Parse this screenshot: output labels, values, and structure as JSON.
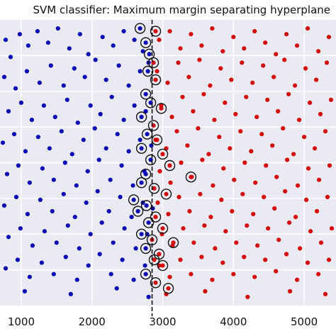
{
  "chart_data": {
    "type": "scatter",
    "title": "SVM classifier: Maximum margin separating hyperplane",
    "xlabel": "",
    "ylabel": "",
    "xlim": [
      700,
      5450
    ],
    "ylim": [
      0,
      1
    ],
    "x_ticks": [
      1000,
      2000,
      3000,
      4000,
      5000
    ],
    "x_tick_labels": [
      "1000",
      "2000",
      "3000",
      "4000",
      "5000"
    ],
    "grid": true,
    "legend": "none",
    "decision_boundary_x": 2850,
    "series": [
      {
        "color": "#0a0ab4",
        "x_range": [
          700,
          2880
        ],
        "points": [
          [
            780,
            0.93
          ],
          [
            850,
            0.87
          ],
          [
            980,
            0.95
          ],
          [
            1100,
            0.91
          ],
          [
            1230,
            0.96
          ],
          [
            1380,
            0.92
          ],
          [
            1520,
            0.97
          ],
          [
            1680,
            0.9
          ],
          [
            1830,
            0.95
          ],
          [
            1950,
            0.88
          ],
          [
            2150,
            0.94
          ],
          [
            2300,
            0.91
          ],
          [
            2450,
            0.96
          ],
          [
            2600,
            0.93
          ],
          [
            2720,
            0.89
          ],
          [
            760,
            0.8
          ],
          [
            920,
            0.76
          ],
          [
            1080,
            0.82
          ],
          [
            1260,
            0.78
          ],
          [
            1420,
            0.84
          ],
          [
            1600,
            0.77
          ],
          [
            1750,
            0.83
          ],
          [
            1900,
            0.8
          ],
          [
            2050,
            0.86
          ],
          [
            2200,
            0.79
          ],
          [
            2380,
            0.84
          ],
          [
            2520,
            0.77
          ],
          [
            2680,
            0.82
          ],
          [
            2800,
            0.85
          ],
          [
            820,
            0.68
          ],
          [
            1000,
            0.71
          ],
          [
            1150,
            0.65
          ],
          [
            1320,
            0.7
          ],
          [
            1480,
            0.66
          ],
          [
            1650,
            0.72
          ],
          [
            1800,
            0.64
          ],
          [
            1980,
            0.7
          ],
          [
            2120,
            0.67
          ],
          [
            2280,
            0.73
          ],
          [
            2450,
            0.65
          ],
          [
            2600,
            0.7
          ],
          [
            2760,
            0.68
          ],
          [
            740,
            0.57
          ],
          [
            900,
            0.6
          ],
          [
            1060,
            0.54
          ],
          [
            1240,
            0.59
          ],
          [
            1400,
            0.55
          ],
          [
            1570,
            0.61
          ],
          [
            1720,
            0.53
          ],
          [
            1880,
            0.58
          ],
          [
            2040,
            0.62
          ],
          [
            2200,
            0.55
          ],
          [
            2360,
            0.6
          ],
          [
            2520,
            0.54
          ],
          [
            2680,
            0.58
          ],
          [
            2840,
            0.56
          ],
          [
            800,
            0.46
          ],
          [
            960,
            0.49
          ],
          [
            1120,
            0.43
          ],
          [
            1300,
            0.48
          ],
          [
            1460,
            0.44
          ],
          [
            1620,
            0.5
          ],
          [
            1780,
            0.42
          ],
          [
            1940,
            0.47
          ],
          [
            2100,
            0.51
          ],
          [
            2260,
            0.44
          ],
          [
            2420,
            0.49
          ],
          [
            2580,
            0.42
          ],
          [
            2740,
            0.47
          ],
          [
            760,
            0.35
          ],
          [
            930,
            0.38
          ],
          [
            1090,
            0.32
          ],
          [
            1270,
            0.37
          ],
          [
            1440,
            0.33
          ],
          [
            1600,
            0.39
          ],
          [
            1760,
            0.31
          ],
          [
            1920,
            0.36
          ],
          [
            2080,
            0.4
          ],
          [
            2240,
            0.33
          ],
          [
            2400,
            0.38
          ],
          [
            2560,
            0.31
          ],
          [
            2720,
            0.36
          ],
          [
            2860,
            0.34
          ],
          [
            820,
            0.24
          ],
          [
            990,
            0.27
          ],
          [
            1160,
            0.21
          ],
          [
            1330,
            0.26
          ],
          [
            1500,
            0.22
          ],
          [
            1660,
            0.28
          ],
          [
            1820,
            0.2
          ],
          [
            1980,
            0.25
          ],
          [
            2140,
            0.29
          ],
          [
            2300,
            0.22
          ],
          [
            2460,
            0.27
          ],
          [
            2620,
            0.2
          ],
          [
            2780,
            0.25
          ],
          [
            780,
            0.13
          ],
          [
            950,
            0.16
          ],
          [
            1120,
            0.1
          ],
          [
            1290,
            0.15
          ],
          [
            1460,
            0.11
          ],
          [
            1630,
            0.17
          ],
          [
            1790,
            0.09
          ],
          [
            1950,
            0.14
          ],
          [
            2110,
            0.18
          ],
          [
            2270,
            0.11
          ],
          [
            2430,
            0.16
          ],
          [
            2590,
            0.09
          ],
          [
            2750,
            0.14
          ],
          [
            1050,
            0.05
          ],
          [
            1700,
            0.04
          ],
          [
            2350,
            0.06
          ],
          [
            2800,
            0.03
          ]
        ]
      },
      {
        "color": "#d40a0a",
        "x_range": [
          2860,
          5450
        ],
        "points": [
          [
            2950,
            0.93
          ],
          [
            3100,
            0.96
          ],
          [
            3250,
            0.9
          ],
          [
            3400,
            0.95
          ],
          [
            3550,
            0.91
          ],
          [
            3700,
            0.97
          ],
          [
            3850,
            0.89
          ],
          [
            4000,
            0.94
          ],
          [
            4150,
            0.9
          ],
          [
            4300,
            0.96
          ],
          [
            4450,
            0.92
          ],
          [
            4600,
            0.88
          ],
          [
            4750,
            0.95
          ],
          [
            4900,
            0.91
          ],
          [
            5050,
            0.97
          ],
          [
            5200,
            0.89
          ],
          [
            5350,
            0.94
          ],
          [
            2920,
            0.82
          ],
          [
            3070,
            0.78
          ],
          [
            3220,
            0.85
          ],
          [
            3370,
            0.8
          ],
          [
            3520,
            0.86
          ],
          [
            3670,
            0.77
          ],
          [
            3820,
            0.83
          ],
          [
            3970,
            0.79
          ],
          [
            4120,
            0.85
          ],
          [
            4270,
            0.78
          ],
          [
            4420,
            0.84
          ],
          [
            4570,
            0.8
          ],
          [
            4720,
            0.86
          ],
          [
            4870,
            0.77
          ],
          [
            5020,
            0.83
          ],
          [
            5170,
            0.79
          ],
          [
            5320,
            0.85
          ],
          [
            2980,
            0.7
          ],
          [
            3130,
            0.66
          ],
          [
            3280,
            0.73
          ],
          [
            3430,
            0.68
          ],
          [
            3580,
            0.74
          ],
          [
            3730,
            0.65
          ],
          [
            3880,
            0.71
          ],
          [
            4030,
            0.67
          ],
          [
            4180,
            0.73
          ],
          [
            4330,
            0.66
          ],
          [
            4480,
            0.72
          ],
          [
            4630,
            0.68
          ],
          [
            4780,
            0.74
          ],
          [
            4930,
            0.65
          ],
          [
            5080,
            0.71
          ],
          [
            5230,
            0.67
          ],
          [
            5380,
            0.72
          ],
          [
            2900,
            0.58
          ],
          [
            3050,
            0.55
          ],
          [
            3200,
            0.61
          ],
          [
            3350,
            0.56
          ],
          [
            3500,
            0.62
          ],
          [
            3650,
            0.53
          ],
          [
            3800,
            0.59
          ],
          [
            3950,
            0.55
          ],
          [
            4100,
            0.61
          ],
          [
            4250,
            0.54
          ],
          [
            4400,
            0.6
          ],
          [
            4550,
            0.56
          ],
          [
            4700,
            0.62
          ],
          [
            4850,
            0.53
          ],
          [
            5000,
            0.59
          ],
          [
            5150,
            0.55
          ],
          [
            5300,
            0.61
          ],
          [
            2960,
            0.47
          ],
          [
            3110,
            0.43
          ],
          [
            3260,
            0.5
          ],
          [
            3410,
            0.45
          ],
          [
            3560,
            0.51
          ],
          [
            3710,
            0.42
          ],
          [
            3860,
            0.48
          ],
          [
            4010,
            0.44
          ],
          [
            4160,
            0.5
          ],
          [
            4310,
            0.43
          ],
          [
            4460,
            0.49
          ],
          [
            4610,
            0.45
          ],
          [
            4760,
            0.51
          ],
          [
            4910,
            0.42
          ],
          [
            5060,
            0.48
          ],
          [
            5210,
            0.44
          ],
          [
            5360,
            0.49
          ],
          [
            2930,
            0.36
          ],
          [
            3080,
            0.32
          ],
          [
            3230,
            0.38
          ],
          [
            3380,
            0.33
          ],
          [
            3530,
            0.39
          ],
          [
            3680,
            0.31
          ],
          [
            3830,
            0.37
          ],
          [
            3980,
            0.33
          ],
          [
            4130,
            0.39
          ],
          [
            4280,
            0.32
          ],
          [
            4430,
            0.38
          ],
          [
            4580,
            0.34
          ],
          [
            4730,
            0.4
          ],
          [
            4880,
            0.31
          ],
          [
            5030,
            0.37
          ],
          [
            5180,
            0.33
          ],
          [
            5330,
            0.38
          ],
          [
            2990,
            0.25
          ],
          [
            3140,
            0.21
          ],
          [
            3290,
            0.27
          ],
          [
            3440,
            0.22
          ],
          [
            3590,
            0.28
          ],
          [
            3740,
            0.2
          ],
          [
            3890,
            0.26
          ],
          [
            4040,
            0.22
          ],
          [
            4190,
            0.28
          ],
          [
            4340,
            0.21
          ],
          [
            4490,
            0.27
          ],
          [
            4640,
            0.23
          ],
          [
            4790,
            0.29
          ],
          [
            4940,
            0.2
          ],
          [
            5090,
            0.26
          ],
          [
            5240,
            0.22
          ],
          [
            5390,
            0.27
          ],
          [
            2950,
            0.14
          ],
          [
            3100,
            0.1
          ],
          [
            3250,
            0.16
          ],
          [
            3400,
            0.11
          ],
          [
            3550,
            0.17
          ],
          [
            3700,
            0.09
          ],
          [
            3850,
            0.15
          ],
          [
            4000,
            0.11
          ],
          [
            4150,
            0.17
          ],
          [
            4300,
            0.1
          ],
          [
            4450,
            0.16
          ],
          [
            4600,
            0.12
          ],
          [
            4750,
            0.18
          ],
          [
            4900,
            0.09
          ],
          [
            5050,
            0.15
          ],
          [
            5200,
            0.11
          ],
          [
            5350,
            0.16
          ],
          [
            3050,
            0.04
          ],
          [
            3600,
            0.05
          ],
          [
            4200,
            0.03
          ],
          [
            4800,
            0.05
          ],
          [
            5300,
            0.04
          ]
        ]
      }
    ],
    "support_vectors": [
      [
        2680,
        0.97
      ],
      [
        2760,
        0.92
      ],
      [
        2900,
        0.96
      ],
      [
        2810,
        0.88
      ],
      [
        2870,
        0.85
      ],
      [
        2790,
        0.82
      ],
      [
        2900,
        0.79
      ],
      [
        2760,
        0.74
      ],
      [
        2830,
        0.71
      ],
      [
        2980,
        0.69
      ],
      [
        2700,
        0.66
      ],
      [
        2870,
        0.63
      ],
      [
        2780,
        0.6
      ],
      [
        2920,
        0.58
      ],
      [
        2700,
        0.55
      ],
      [
        3000,
        0.53
      ],
      [
        2830,
        0.51
      ],
      [
        3100,
        0.49
      ],
      [
        2760,
        0.46
      ],
      [
        3400,
        0.45
      ],
      [
        2700,
        0.43
      ],
      [
        2880,
        0.41
      ],
      [
        3050,
        0.39
      ],
      [
        2590,
        0.37
      ],
      [
        2770,
        0.35
      ],
      [
        2650,
        0.33
      ],
      [
        2900,
        0.31
      ],
      [
        2800,
        0.29
      ],
      [
        3000,
        0.27
      ],
      [
        2700,
        0.25
      ],
      [
        2850,
        0.23
      ],
      [
        3150,
        0.22
      ],
      [
        2760,
        0.2
      ],
      [
        2950,
        0.18
      ],
      [
        2880,
        0.16
      ],
      [
        3000,
        0.14
      ],
      [
        2760,
        0.11
      ],
      [
        2900,
        0.08
      ],
      [
        3080,
        0.06
      ]
    ]
  }
}
